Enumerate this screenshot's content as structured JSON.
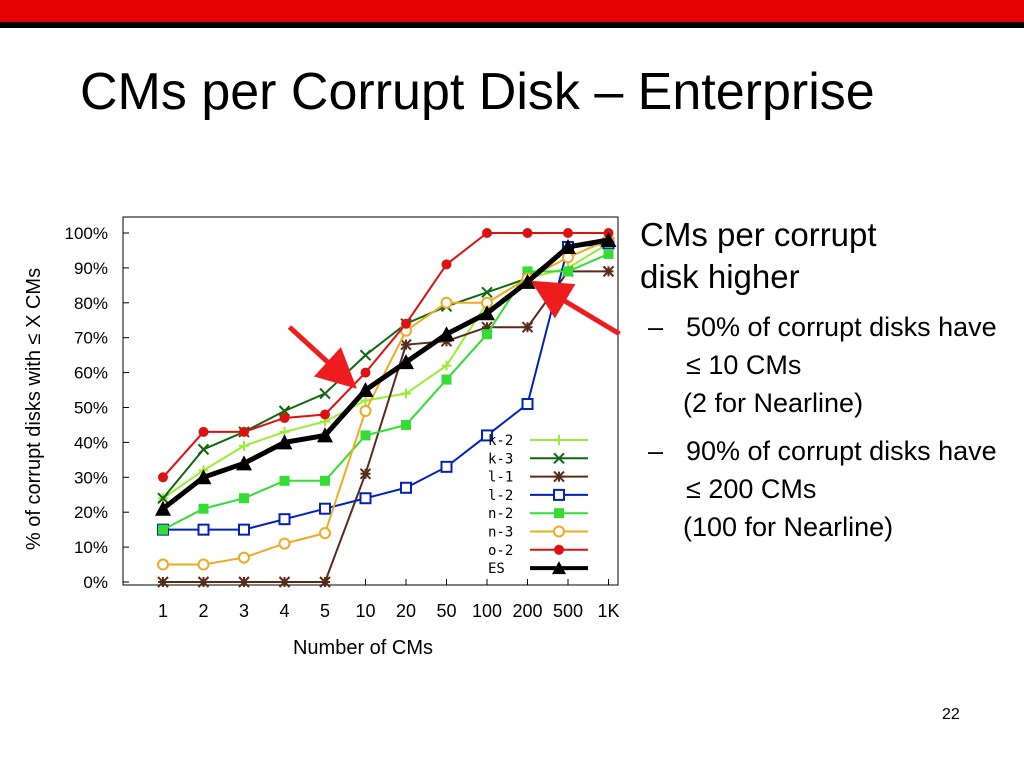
{
  "slide": {
    "title": "CMs per Corrupt Disk – Enterprise",
    "page_number": "22"
  },
  "bullets": {
    "main": "CMs per corrupt disk higher",
    "items": [
      {
        "text": "50% of corrupt disks have ≤ 10 CMs",
        "note": "(2 for Nearline)"
      },
      {
        "text": "90% of corrupt disks have ≤ 200 CMs",
        "note": "(100 for Nearline)"
      }
    ]
  },
  "colors": {
    "red_bar": "#e60000",
    "arrow": "#ee1c1c"
  },
  "chart_data": {
    "type": "line",
    "xlabel": "Number of CMs",
    "ylabel": "% of  corrupt disks with ≤ X CMs",
    "categories": [
      "1",
      "2",
      "3",
      "4",
      "5",
      "10",
      "20",
      "50",
      "100",
      "200",
      "500",
      "1K"
    ],
    "yticks": [
      "0%",
      "10%",
      "20%",
      "30%",
      "40%",
      "50%",
      "60%",
      "70%",
      "80%",
      "90%",
      "100%"
    ],
    "ylim": [
      0,
      100
    ],
    "grid": false,
    "legend_position": "bottom-right",
    "series": [
      {
        "name": "k-2",
        "color": "#99ee33",
        "marker": "plus",
        "values": [
          24,
          32,
          39,
          43,
          46,
          52,
          54,
          62,
          80,
          87,
          90,
          97
        ]
      },
      {
        "name": "k-3",
        "color": "#116611",
        "marker": "x",
        "values": [
          24,
          38,
          43,
          49,
          54,
          65,
          74,
          79,
          83,
          87,
          96,
          97
        ]
      },
      {
        "name": "l-1",
        "color": "#5a2a1a",
        "marker": "asterisk",
        "values": [
          0,
          0,
          0,
          0,
          0,
          31,
          68,
          69,
          73,
          73,
          89,
          89
        ]
      },
      {
        "name": "l-2",
        "color": "#0022bb",
        "marker": "square",
        "values": [
          15,
          15,
          15,
          18,
          21,
          24,
          27,
          33,
          42,
          51,
          96,
          97
        ]
      },
      {
        "name": "n-2",
        "color": "#33dd33",
        "marker": "filled-square",
        "values": [
          15,
          21,
          24,
          29,
          29,
          42,
          45,
          58,
          71,
          89,
          89,
          94
        ]
      },
      {
        "name": "n-3",
        "color": "#eeaa22",
        "marker": "circle",
        "values": [
          5,
          5,
          7,
          11,
          14,
          49,
          72,
          80,
          80,
          87,
          93,
          98
        ]
      },
      {
        "name": "o-2",
        "color": "#dd1111",
        "marker": "filled-circle",
        "values": [
          30,
          43,
          43,
          47,
          48,
          60,
          74,
          91,
          100,
          100,
          100,
          100
        ]
      },
      {
        "name": "ES",
        "color": "#000000",
        "marker": "filled-triangle",
        "values": [
          21,
          30,
          34,
          40,
          42,
          55,
          63,
          71,
          77,
          86,
          96,
          98
        ],
        "bold": true
      }
    ],
    "annotations": [
      {
        "type": "arrow",
        "points_to": {
          "category": "10",
          "value": 55
        }
      },
      {
        "type": "arrow",
        "points_to": {
          "category": "200",
          "value": 86
        }
      }
    ]
  }
}
